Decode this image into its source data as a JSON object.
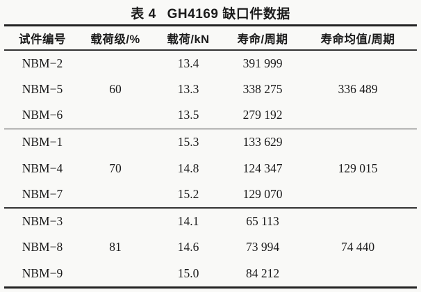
{
  "caption": {
    "label": "表 4",
    "title": "GH4169 缺口件数据"
  },
  "table": {
    "headers": [
      "试件编号",
      "载荷级/%",
      "载荷/kN",
      "寿命/周期",
      "寿命均值/周期"
    ],
    "groups": [
      {
        "load_level": "60",
        "mean_life": "336 489",
        "rows": [
          {
            "specimen": "NBM−2",
            "load": "13.4",
            "life": "391 999"
          },
          {
            "specimen": "NBM−5",
            "load": "13.3",
            "life": "338 275"
          },
          {
            "specimen": "NBM−6",
            "load": "13.5",
            "life": "279 192"
          }
        ]
      },
      {
        "load_level": "70",
        "mean_life": "129 015",
        "rows": [
          {
            "specimen": "NBM−1",
            "load": "15.3",
            "life": "133 629"
          },
          {
            "specimen": "NBM−4",
            "load": "14.8",
            "life": "124 347"
          },
          {
            "specimen": "NBM−7",
            "load": "15.2",
            "life": "129 070"
          }
        ]
      },
      {
        "load_level": "81",
        "mean_life": "74 440",
        "rows": [
          {
            "specimen": "NBM−3",
            "load": "14.1",
            "life": "65 113"
          },
          {
            "specimen": "NBM−8",
            "load": "14.6",
            "life": "73 994"
          },
          {
            "specimen": "NBM−9",
            "load": "15.0",
            "life": "84 212"
          }
        ]
      }
    ]
  },
  "colors": {
    "background": "#f9f9f7",
    "text": "#1b1b1b",
    "rule": "#222222"
  }
}
